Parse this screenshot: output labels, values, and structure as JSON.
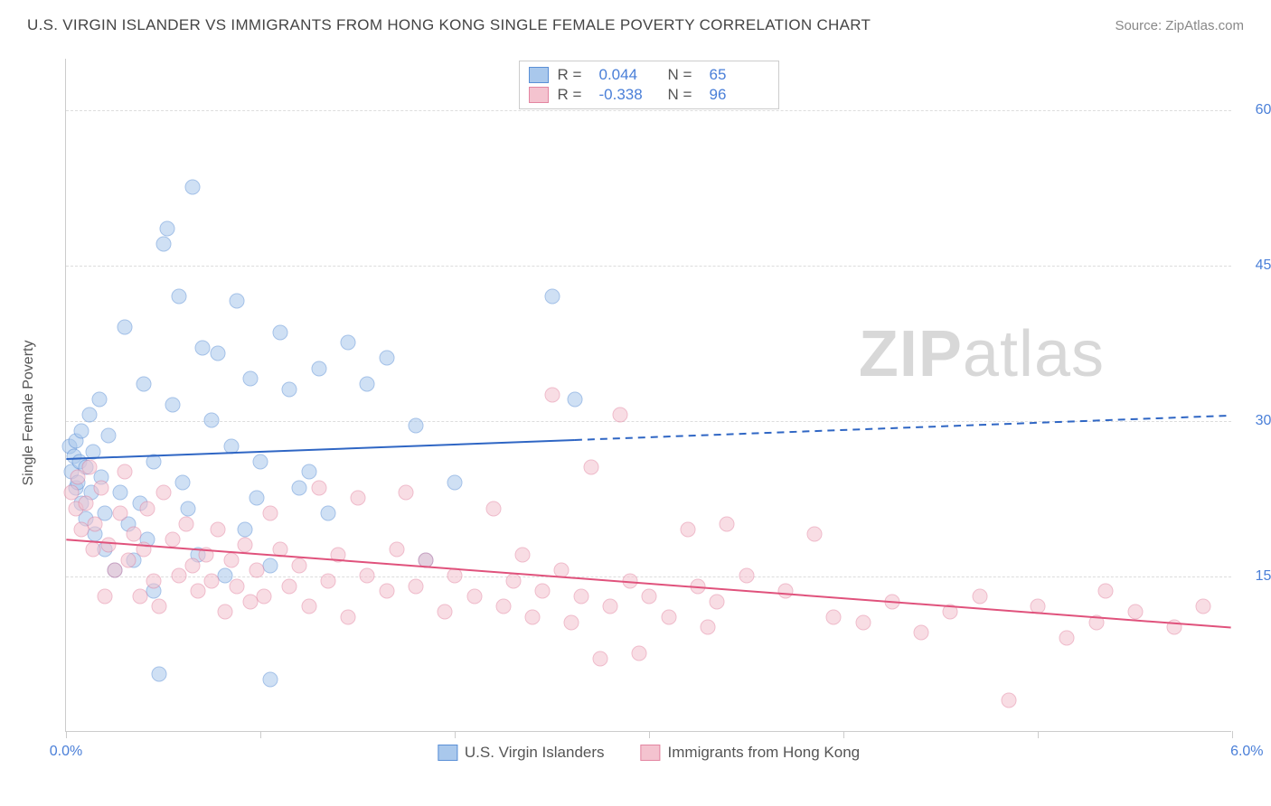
{
  "title": "U.S. VIRGIN ISLANDER VS IMMIGRANTS FROM HONG KONG SINGLE FEMALE POVERTY CORRELATION CHART",
  "source": "Source: ZipAtlas.com",
  "ylabel": "Single Female Poverty",
  "watermark_bold": "ZIP",
  "watermark_rest": "atlas",
  "chart": {
    "type": "scatter",
    "xlim": [
      0,
      6.0
    ],
    "ylim": [
      0,
      65
    ],
    "yticks": [
      15.0,
      30.0,
      45.0,
      60.0
    ],
    "ytick_labels": [
      "15.0%",
      "30.0%",
      "45.0%",
      "60.0%"
    ],
    "xticks": [
      0,
      1.0,
      2.0,
      3.0,
      4.0,
      5.0,
      6.0
    ],
    "xtick_labels": {
      "start": "0.0%",
      "end": "6.0%"
    },
    "background_color": "#ffffff",
    "grid_color": "#dddddd",
    "ytick_label_color": "#4a7fd8",
    "axis_color": "#cccccc",
    "marker_radius": 8.5,
    "marker_opacity": 0.55,
    "title_fontsize": 17,
    "label_fontsize": 16,
    "series": [
      {
        "name": "U.S. Virgin Islanders",
        "color_fill": "#a9c8ec",
        "color_stroke": "#5a8fd6",
        "R": "0.044",
        "N": "65",
        "trend": {
          "y_start": 26.3,
          "y_end": 30.5,
          "solid_until_x": 2.62,
          "color": "#2f66c4",
          "width": 2
        },
        "points": [
          [
            0.02,
            27.5
          ],
          [
            0.03,
            25.0
          ],
          [
            0.04,
            26.5
          ],
          [
            0.05,
            23.5
          ],
          [
            0.05,
            28.0
          ],
          [
            0.06,
            24.0
          ],
          [
            0.07,
            26.0
          ],
          [
            0.08,
            22.0
          ],
          [
            0.08,
            29.0
          ],
          [
            0.1,
            20.5
          ],
          [
            0.1,
            25.5
          ],
          [
            0.12,
            30.5
          ],
          [
            0.13,
            23.0
          ],
          [
            0.14,
            27.0
          ],
          [
            0.15,
            19.0
          ],
          [
            0.17,
            32.0
          ],
          [
            0.18,
            24.5
          ],
          [
            0.2,
            17.5
          ],
          [
            0.2,
            21.0
          ],
          [
            0.22,
            28.5
          ],
          [
            0.25,
            15.5
          ],
          [
            0.28,
            23.0
          ],
          [
            0.3,
            39.0
          ],
          [
            0.32,
            20.0
          ],
          [
            0.35,
            16.5
          ],
          [
            0.38,
            22.0
          ],
          [
            0.4,
            33.5
          ],
          [
            0.42,
            18.5
          ],
          [
            0.45,
            13.5
          ],
          [
            0.45,
            26.0
          ],
          [
            0.48,
            5.5
          ],
          [
            0.5,
            47.0
          ],
          [
            0.52,
            48.5
          ],
          [
            0.55,
            31.5
          ],
          [
            0.58,
            42.0
          ],
          [
            0.6,
            24.0
          ],
          [
            0.63,
            21.5
          ],
          [
            0.65,
            52.5
          ],
          [
            0.68,
            17.0
          ],
          [
            0.7,
            37.0
          ],
          [
            0.75,
            30.0
          ],
          [
            0.78,
            36.5
          ],
          [
            0.82,
            15.0
          ],
          [
            0.85,
            27.5
          ],
          [
            0.88,
            41.5
          ],
          [
            0.92,
            19.5
          ],
          [
            0.95,
            34.0
          ],
          [
            0.98,
            22.5
          ],
          [
            1.0,
            26.0
          ],
          [
            1.05,
            5.0
          ],
          [
            1.05,
            16.0
          ],
          [
            1.1,
            38.5
          ],
          [
            1.15,
            33.0
          ],
          [
            1.2,
            23.5
          ],
          [
            1.25,
            25.0
          ],
          [
            1.3,
            35.0
          ],
          [
            1.35,
            21.0
          ],
          [
            1.45,
            37.5
          ],
          [
            1.55,
            33.5
          ],
          [
            1.65,
            36.0
          ],
          [
            1.8,
            29.5
          ],
          [
            1.85,
            16.5
          ],
          [
            2.0,
            24.0
          ],
          [
            2.5,
            42.0
          ],
          [
            2.62,
            32.0
          ]
        ]
      },
      {
        "name": "Immigrants from Hong Kong",
        "color_fill": "#f4c3cf",
        "color_stroke": "#e385a1",
        "R": "-0.338",
        "N": "96",
        "trend": {
          "y_start": 18.5,
          "y_end": 10.0,
          "solid_until_x": 6.0,
          "color": "#e0527c",
          "width": 2
        },
        "points": [
          [
            0.03,
            23.0
          ],
          [
            0.05,
            21.5
          ],
          [
            0.06,
            24.5
          ],
          [
            0.08,
            19.5
          ],
          [
            0.1,
            22.0
          ],
          [
            0.12,
            25.5
          ],
          [
            0.14,
            17.5
          ],
          [
            0.15,
            20.0
          ],
          [
            0.18,
            23.5
          ],
          [
            0.2,
            13.0
          ],
          [
            0.22,
            18.0
          ],
          [
            0.25,
            15.5
          ],
          [
            0.28,
            21.0
          ],
          [
            0.3,
            25.0
          ],
          [
            0.32,
            16.5
          ],
          [
            0.35,
            19.0
          ],
          [
            0.38,
            13.0
          ],
          [
            0.4,
            17.5
          ],
          [
            0.42,
            21.5
          ],
          [
            0.45,
            14.5
          ],
          [
            0.48,
            12.0
          ],
          [
            0.5,
            23.0
          ],
          [
            0.55,
            18.5
          ],
          [
            0.58,
            15.0
          ],
          [
            0.62,
            20.0
          ],
          [
            0.65,
            16.0
          ],
          [
            0.68,
            13.5
          ],
          [
            0.72,
            17.0
          ],
          [
            0.75,
            14.5
          ],
          [
            0.78,
            19.5
          ],
          [
            0.82,
            11.5
          ],
          [
            0.85,
            16.5
          ],
          [
            0.88,
            14.0
          ],
          [
            0.92,
            18.0
          ],
          [
            0.95,
            12.5
          ],
          [
            0.98,
            15.5
          ],
          [
            1.02,
            13.0
          ],
          [
            1.05,
            21.0
          ],
          [
            1.1,
            17.5
          ],
          [
            1.15,
            14.0
          ],
          [
            1.2,
            16.0
          ],
          [
            1.25,
            12.0
          ],
          [
            1.3,
            23.5
          ],
          [
            1.35,
            14.5
          ],
          [
            1.4,
            17.0
          ],
          [
            1.45,
            11.0
          ],
          [
            1.5,
            22.5
          ],
          [
            1.55,
            15.0
          ],
          [
            1.65,
            13.5
          ],
          [
            1.7,
            17.5
          ],
          [
            1.75,
            23.0
          ],
          [
            1.8,
            14.0
          ],
          [
            1.85,
            16.5
          ],
          [
            1.95,
            11.5
          ],
          [
            2.0,
            15.0
          ],
          [
            2.1,
            13.0
          ],
          [
            2.2,
            21.5
          ],
          [
            2.25,
            12.0
          ],
          [
            2.3,
            14.5
          ],
          [
            2.35,
            17.0
          ],
          [
            2.4,
            11.0
          ],
          [
            2.45,
            13.5
          ],
          [
            2.5,
            32.5
          ],
          [
            2.55,
            15.5
          ],
          [
            2.6,
            10.5
          ],
          [
            2.65,
            13.0
          ],
          [
            2.7,
            25.5
          ],
          [
            2.75,
            7.0
          ],
          [
            2.8,
            12.0
          ],
          [
            2.85,
            30.5
          ],
          [
            2.9,
            14.5
          ],
          [
            2.95,
            7.5
          ],
          [
            3.0,
            13.0
          ],
          [
            3.1,
            11.0
          ],
          [
            3.2,
            19.5
          ],
          [
            3.25,
            14.0
          ],
          [
            3.3,
            10.0
          ],
          [
            3.35,
            12.5
          ],
          [
            3.4,
            20.0
          ],
          [
            3.5,
            15.0
          ],
          [
            3.7,
            13.5
          ],
          [
            3.85,
            19.0
          ],
          [
            3.95,
            11.0
          ],
          [
            4.1,
            10.5
          ],
          [
            4.25,
            12.5
          ],
          [
            4.4,
            9.5
          ],
          [
            4.55,
            11.5
          ],
          [
            4.7,
            13.0
          ],
          [
            4.85,
            3.0
          ],
          [
            5.0,
            12.0
          ],
          [
            5.15,
            9.0
          ],
          [
            5.3,
            10.5
          ],
          [
            5.35,
            13.5
          ],
          [
            5.5,
            11.5
          ],
          [
            5.7,
            10.0
          ],
          [
            5.85,
            12.0
          ]
        ]
      }
    ]
  },
  "legend_bottom": [
    "U.S. Virgin Islanders",
    "Immigrants from Hong Kong"
  ]
}
